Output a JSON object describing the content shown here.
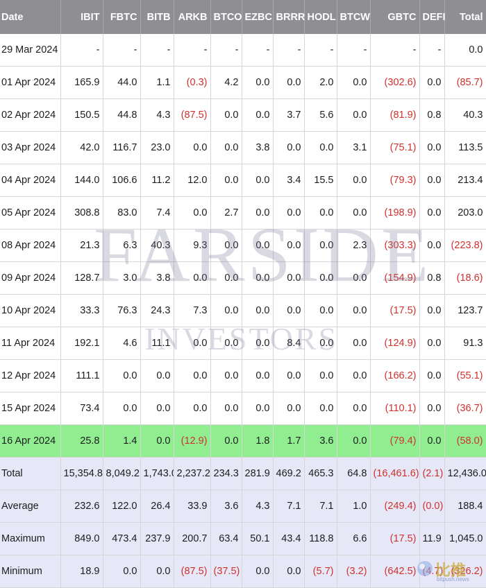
{
  "columns": [
    "Date",
    "IBIT",
    "FBTC",
    "BITB",
    "ARKB",
    "BTCO",
    "EZBC",
    "BRRR",
    "HODL",
    "BTCW",
    "GBTC",
    "DEFI",
    "Total"
  ],
  "rows": [
    [
      "29 Mar 2024",
      "-",
      "-",
      "-",
      "-",
      "-",
      "-",
      "-",
      "-",
      "-",
      "-",
      "-",
      "0.0"
    ],
    [
      "01 Apr 2024",
      "165.9",
      "44.0",
      "1.1",
      "(0.3)",
      "4.2",
      "0.0",
      "0.0",
      "2.0",
      "0.0",
      "(302.6)",
      "0.0",
      "(85.7)"
    ],
    [
      "02 Apr 2024",
      "150.5",
      "44.8",
      "4.3",
      "(87.5)",
      "0.0",
      "0.0",
      "3.7",
      "5.6",
      "0.0",
      "(81.9)",
      "0.8",
      "40.3"
    ],
    [
      "03 Apr 2024",
      "42.0",
      "116.7",
      "23.0",
      "0.0",
      "0.0",
      "3.8",
      "0.0",
      "0.0",
      "3.1",
      "(75.1)",
      "0.0",
      "113.5"
    ],
    [
      "04 Apr 2024",
      "144.0",
      "106.6",
      "11.2",
      "12.0",
      "0.0",
      "0.0",
      "3.4",
      "15.5",
      "0.0",
      "(79.3)",
      "0.0",
      "213.4"
    ],
    [
      "05 Apr 2024",
      "308.8",
      "83.0",
      "7.4",
      "0.0",
      "2.7",
      "0.0",
      "0.0",
      "0.0",
      "0.0",
      "(198.9)",
      "0.0",
      "203.0"
    ],
    [
      "08 Apr 2024",
      "21.3",
      "6.3",
      "40.3",
      "9.3",
      "0.0",
      "0.0",
      "0.0",
      "0.0",
      "2.3",
      "(303.3)",
      "0.0",
      "(223.8)"
    ],
    [
      "09 Apr 2024",
      "128.7",
      "3.0",
      "3.8",
      "0.0",
      "0.0",
      "0.0",
      "0.0",
      "0.0",
      "0.0",
      "(154.9)",
      "0.8",
      "(18.6)"
    ],
    [
      "10 Apr 2024",
      "33.3",
      "76.3",
      "24.3",
      "7.3",
      "0.0",
      "0.0",
      "0.0",
      "0.0",
      "0.0",
      "(17.5)",
      "0.0",
      "123.7"
    ],
    [
      "11 Apr 2024",
      "192.1",
      "4.6",
      "11.1",
      "0.0",
      "0.0",
      "0.0",
      "8.4",
      "0.0",
      "0.0",
      "(124.9)",
      "0.0",
      "91.3"
    ],
    [
      "12 Apr 2024",
      "111.1",
      "0.0",
      "0.0",
      "0.0",
      "0.0",
      "0.0",
      "0.0",
      "0.0",
      "0.0",
      "(166.2)",
      "0.0",
      "(55.1)"
    ],
    [
      "15 Apr 2024",
      "73.4",
      "0.0",
      "0.0",
      "0.0",
      "0.0",
      "0.0",
      "0.0",
      "0.0",
      "0.0",
      "(110.1)",
      "0.0",
      "(36.7)"
    ],
    [
      "16 Apr 2024",
      "25.8",
      "1.4",
      "0.0",
      "(12.9)",
      "0.0",
      "1.8",
      "1.7",
      "3.6",
      "0.0",
      "(79.4)",
      "0.0",
      "(58.0)"
    ]
  ],
  "highlighted_row_index": 12,
  "summary_rows": [
    [
      "Total",
      "15,354.8",
      "8,049.2",
      "1,743.0",
      "2,237.2",
      "234.3",
      "281.9",
      "469.2",
      "465.3",
      "64.8",
      "(16,461.6)",
      "(2.1)",
      "12,436.0"
    ],
    [
      "Average",
      "232.6",
      "122.0",
      "26.4",
      "33.9",
      "3.6",
      "4.3",
      "7.1",
      "7.1",
      "1.0",
      "(249.4)",
      "(0.0)",
      "188.4"
    ],
    [
      "Maximum",
      "849.0",
      "473.4",
      "237.9",
      "200.7",
      "63.4",
      "50.1",
      "43.4",
      "118.8",
      "6.6",
      "(17.5)",
      "11.9",
      "1,045.0"
    ],
    [
      "Minimum",
      "18.9",
      "0.0",
      "0.0",
      "(87.5)",
      "(37.5)",
      "0.0",
      "0.0",
      "(5.7)",
      "(3.2)",
      "(642.5)",
      "(4.7)",
      "(326.2)"
    ]
  ],
  "watermark": {
    "line1": "FARSIDE",
    "line2": "INVESTORS"
  },
  "badge": {
    "text": "比推",
    "url": "bitpush.news"
  },
  "colors": {
    "header_bg": "#8e8e93",
    "negative": "#d0312d",
    "highlight": "#90ee90",
    "summary_bg": "#e6e8f7"
  }
}
